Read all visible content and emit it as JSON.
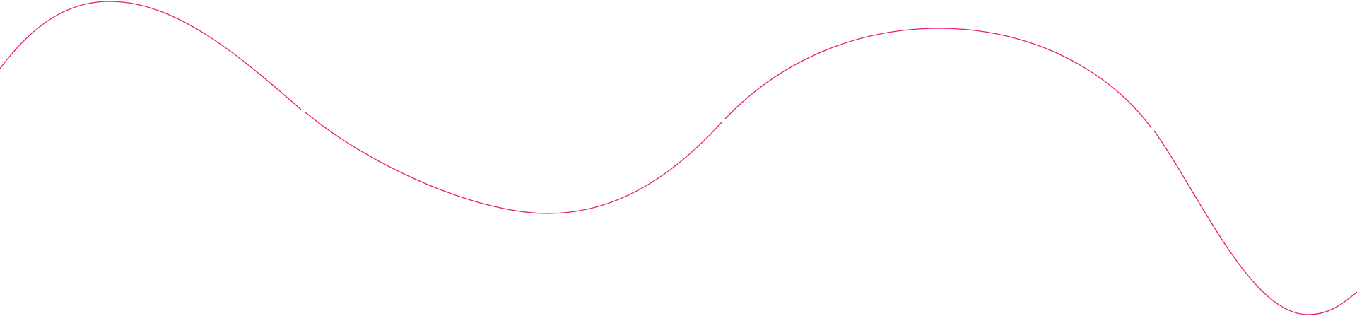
{
  "decoration": {
    "type": "wave-line",
    "segment_count": 4,
    "colors": {
      "line": "#e8197d",
      "background": "#ffffff"
    }
  }
}
